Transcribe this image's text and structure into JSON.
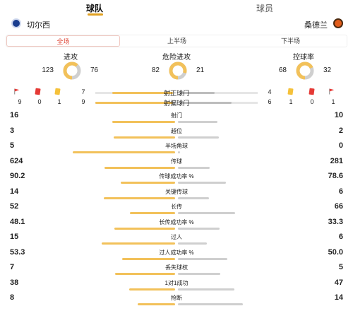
{
  "tabs": [
    {
      "label": "球队",
      "active": true
    },
    {
      "label": "球员",
      "active": false
    }
  ],
  "teams": {
    "home": "切尔西",
    "away": "桑德兰"
  },
  "periods": [
    {
      "label": "全场",
      "active": true
    },
    {
      "label": "上半场",
      "active": false
    },
    {
      "label": "下半场",
      "active": false
    }
  ],
  "donuts": [
    {
      "title": "进攻",
      "home": "123",
      "away": "76",
      "home_value": 123,
      "away_value": 76
    },
    {
      "title": "危险进攻",
      "home": "82",
      "away": "21",
      "home_value": 82,
      "away_value": 21
    },
    {
      "title": "控球率",
      "home": "68",
      "away": "32",
      "home_value": 68,
      "away_value": 32
    }
  ],
  "shot_rows": [
    {
      "label": "射正球门",
      "home": "7",
      "away": "4",
      "home_value": 7,
      "away_value": 4
    },
    {
      "label": "射偏球门",
      "home": "9",
      "away": "6",
      "home_value": 9,
      "away_value": 6
    }
  ],
  "card_counts": {
    "home": [
      "9",
      "0",
      "1"
    ],
    "away": [
      "1",
      "0",
      "1"
    ]
  },
  "stats": [
    {
      "label": "射门",
      "home": "16",
      "away": "10",
      "home_value": 16,
      "away_value": 10
    },
    {
      "label": "越位",
      "home": "3",
      "away": "2",
      "home_value": 3,
      "away_value": 2
    },
    {
      "label": "半场角球",
      "home": "5",
      "away": "0",
      "home_value": 5,
      "away_value": 0
    },
    {
      "label": "传球",
      "home": "624",
      "away": "281",
      "home_value": 624,
      "away_value": 281
    },
    {
      "label": "传球成功率 %",
      "home": "90.2",
      "away": "78.6",
      "home_value": 90.2,
      "away_value": 78.6
    },
    {
      "label": "关键传球",
      "home": "14",
      "away": "6",
      "home_value": 14,
      "away_value": 6
    },
    {
      "label": "长传",
      "home": "52",
      "away": "66",
      "home_value": 52,
      "away_value": 66
    },
    {
      "label": "长传成功率 %",
      "home": "48.1",
      "away": "33.3",
      "home_value": 48.1,
      "away_value": 33.3
    },
    {
      "label": "过人",
      "home": "15",
      "away": "6",
      "home_value": 15,
      "away_value": 6
    },
    {
      "label": "过人成功率 %",
      "home": "53.3",
      "away": "50.0",
      "home_value": 53.3,
      "away_value": 50.0
    },
    {
      "label": "丢失球权",
      "home": "7",
      "away": "5",
      "home_value": 7,
      "away_value": 5
    },
    {
      "label": "1对1成功",
      "home": "38",
      "away": "47",
      "home_value": 38,
      "away_value": 47
    },
    {
      "label": "抢断",
      "home": "8",
      "away": "14",
      "home_value": 8,
      "away_value": 14
    }
  ],
  "colors": {
    "home": "#f2c15a",
    "away": "#cfcfcf",
    "accent": "#e04c3c",
    "tab_underline": "#e0a020"
  }
}
